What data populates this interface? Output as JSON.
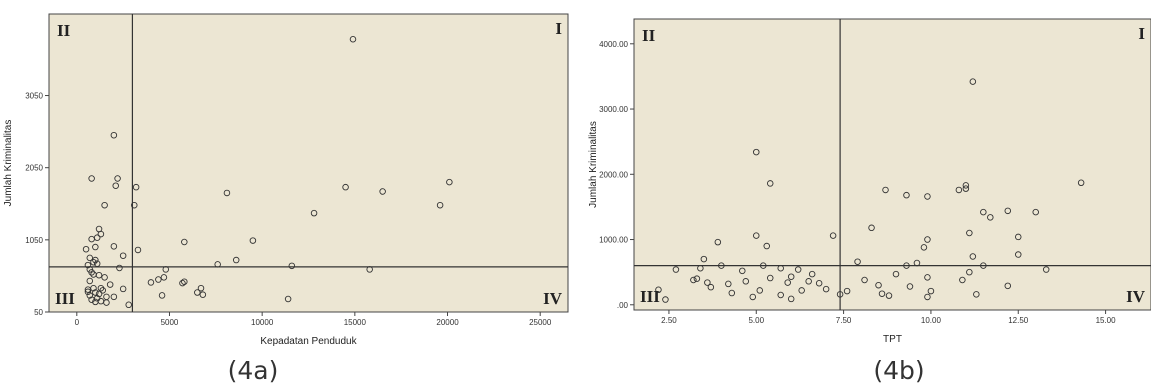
{
  "panels": [
    {
      "caption": "(4a)",
      "chart_data": {
        "type": "scatter",
        "xlabel": "Kepadatan Penduduk",
        "ylabel": "Jumlah Kriminalitas",
        "xlim": [
          -1500,
          26500
        ],
        "ylim": [
          50,
          4180
        ],
        "xticks": [
          0,
          5000,
          10000,
          15000,
          20000,
          25000
        ],
        "xtick_labels": [
          "0",
          "5000",
          "10000",
          "15000",
          "20000",
          "25000"
        ],
        "yticks": [
          50,
          1050,
          2050,
          3050
        ],
        "ytick_labels": [
          "50",
          "1050",
          "2050",
          "3050"
        ],
        "vline": 3000,
        "hline": 675,
        "quadrant_labels": {
          "top_left": "II",
          "top_right": "I",
          "bottom_left": "III",
          "bottom_right": "IV"
        },
        "colors": {
          "plot_bg": "#ece6d3",
          "point_stroke": "#333333",
          "ref_line": "#333333"
        },
        "points": [
          [
            14900,
            3830
          ],
          [
            2000,
            2500
          ],
          [
            800,
            1900
          ],
          [
            2200,
            1900
          ],
          [
            2100,
            1800
          ],
          [
            3200,
            1780
          ],
          [
            20100,
            1850
          ],
          [
            14500,
            1780
          ],
          [
            16500,
            1720
          ],
          [
            8100,
            1700
          ],
          [
            19600,
            1530
          ],
          [
            1500,
            1530
          ],
          [
            3100,
            1530
          ],
          [
            12800,
            1420
          ],
          [
            1200,
            1200
          ],
          [
            1300,
            1130
          ],
          [
            1100,
            1080
          ],
          [
            800,
            1060
          ],
          [
            2000,
            960
          ],
          [
            500,
            920
          ],
          [
            5800,
            1020
          ],
          [
            9500,
            1040
          ],
          [
            3300,
            910
          ],
          [
            1000,
            950
          ],
          [
            2500,
            830
          ],
          [
            700,
            800
          ],
          [
            1000,
            770
          ],
          [
            900,
            740
          ],
          [
            1100,
            720
          ],
          [
            600,
            700
          ],
          [
            7600,
            710
          ],
          [
            8600,
            770
          ],
          [
            11600,
            690
          ],
          [
            15800,
            640
          ],
          [
            2300,
            660
          ],
          [
            700,
            640
          ],
          [
            800,
            600
          ],
          [
            900,
            570
          ],
          [
            1200,
            560
          ],
          [
            1500,
            530
          ],
          [
            4800,
            640
          ],
          [
            4700,
            530
          ],
          [
            4400,
            500
          ],
          [
            4000,
            460
          ],
          [
            5800,
            470
          ],
          [
            5700,
            450
          ],
          [
            6700,
            380
          ],
          [
            6500,
            320
          ],
          [
            6800,
            290
          ],
          [
            2500,
            370
          ],
          [
            1800,
            430
          ],
          [
            1300,
            380
          ],
          [
            700,
            480
          ],
          [
            900,
            380
          ],
          [
            600,
            330
          ],
          [
            1000,
            320
          ],
          [
            1200,
            300
          ],
          [
            1400,
            350
          ],
          [
            1600,
            260
          ],
          [
            1100,
            240
          ],
          [
            700,
            280
          ],
          [
            800,
            220
          ],
          [
            1000,
            190
          ],
          [
            1600,
            180
          ],
          [
            2800,
            150
          ],
          [
            11400,
            230
          ],
          [
            4600,
            280
          ],
          [
            1300,
            200
          ],
          [
            2000,
            260
          ],
          [
            600,
            360
          ]
        ]
      }
    },
    {
      "caption": "(4b)",
      "chart_data": {
        "type": "scatter",
        "xlabel": "TPT",
        "ylabel": "Jumlah Kriminalitas",
        "xlim": [
          1.5,
          16.3
        ],
        "ylim": [
          -80,
          4380
        ],
        "xticks": [
          2.5,
          5.0,
          7.5,
          10.0,
          12.5,
          15.0
        ],
        "xtick_labels": [
          "2.50",
          "5.00",
          "7.50",
          "10.00",
          "12.50",
          "15.00"
        ],
        "yticks": [
          0,
          1000,
          2000,
          3000,
          4000
        ],
        "ytick_labels": [
          ".00",
          "1000.00",
          "2000.00",
          "3000.00",
          "4000.00"
        ],
        "vline": 7.4,
        "hline": 600,
        "quadrant_labels": {
          "top_left": "II",
          "top_right": "I",
          "bottom_left": "III",
          "bottom_right": "IV"
        },
        "colors": {
          "plot_bg": "#ece6d3",
          "point_stroke": "#333333",
          "ref_line": "#333333"
        },
        "points": [
          [
            11.2,
            3420
          ],
          [
            5.0,
            2340
          ],
          [
            5.4,
            1860
          ],
          [
            14.3,
            1870
          ],
          [
            11.0,
            1830
          ],
          [
            11.0,
            1780
          ],
          [
            10.8,
            1760
          ],
          [
            8.7,
            1760
          ],
          [
            9.3,
            1680
          ],
          [
            9.9,
            1660
          ],
          [
            11.5,
            1420
          ],
          [
            12.2,
            1440
          ],
          [
            13.0,
            1420
          ],
          [
            11.7,
            1340
          ],
          [
            8.3,
            1180
          ],
          [
            11.1,
            1100
          ],
          [
            12.5,
            1040
          ],
          [
            7.2,
            1060
          ],
          [
            5.0,
            1060
          ],
          [
            3.9,
            960
          ],
          [
            5.3,
            900
          ],
          [
            9.9,
            1000
          ],
          [
            9.8,
            880
          ],
          [
            12.5,
            770
          ],
          [
            3.5,
            700
          ],
          [
            11.2,
            740
          ],
          [
            11.5,
            600
          ],
          [
            13.3,
            540
          ],
          [
            11.1,
            500
          ],
          [
            2.7,
            540
          ],
          [
            3.4,
            560
          ],
          [
            4.0,
            600
          ],
          [
            4.6,
            520
          ],
          [
            5.2,
            600
          ],
          [
            5.7,
            560
          ],
          [
            6.2,
            540
          ],
          [
            6.6,
            470
          ],
          [
            6.0,
            430
          ],
          [
            7.9,
            660
          ],
          [
            9.6,
            640
          ],
          [
            9.3,
            600
          ],
          [
            9.0,
            470
          ],
          [
            9.9,
            420
          ],
          [
            3.3,
            400
          ],
          [
            3.6,
            340
          ],
          [
            4.2,
            320
          ],
          [
            4.7,
            360
          ],
          [
            5.4,
            410
          ],
          [
            5.9,
            340
          ],
          [
            6.8,
            330
          ],
          [
            7.6,
            210
          ],
          [
            8.1,
            380
          ],
          [
            8.5,
            300
          ],
          [
            9.4,
            280
          ],
          [
            10.0,
            210
          ],
          [
            10.9,
            380
          ],
          [
            11.3,
            160
          ],
          [
            12.2,
            290
          ],
          [
            2.2,
            230
          ],
          [
            3.7,
            270
          ],
          [
            4.3,
            180
          ],
          [
            5.1,
            220
          ],
          [
            5.7,
            150
          ],
          [
            6.3,
            220
          ],
          [
            7.0,
            240
          ],
          [
            7.4,
            160
          ],
          [
            8.8,
            140
          ],
          [
            9.9,
            120
          ],
          [
            2.4,
            80
          ],
          [
            6.0,
            90
          ],
          [
            4.9,
            120
          ],
          [
            3.2,
            380
          ],
          [
            6.5,
            360
          ],
          [
            8.6,
            170
          ]
        ]
      }
    }
  ]
}
